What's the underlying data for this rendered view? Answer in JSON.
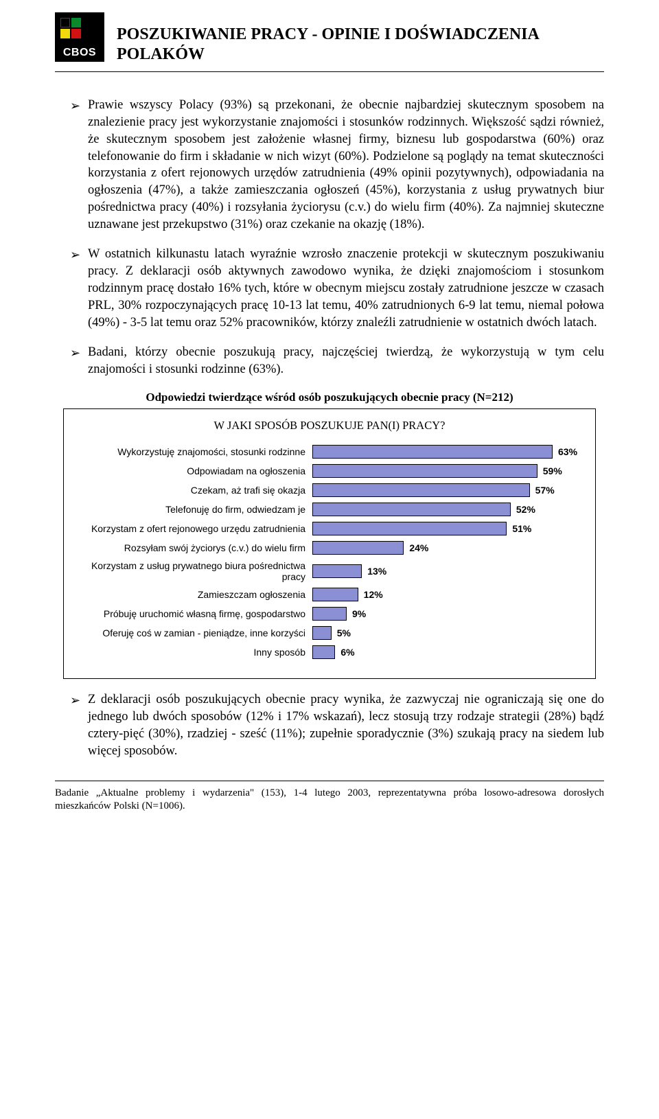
{
  "header": {
    "logo_text": "CBOS",
    "logo_colors": {
      "green": "#0a8a2a",
      "yellow": "#f2d90e",
      "red": "#d11212",
      "black": "#000000"
    },
    "title": "POSZUKIWANIE PRACY - OPINIE I DOŚWIADCZENIA POLAKÓW"
  },
  "bullets": [
    "Prawie wszyscy Polacy (93%) są przekonani, że obecnie najbardziej skutecznym sposobem na znalezienie pracy jest wykorzystanie znajomości i stosunków rodzinnych. Większość sądzi również, że skutecznym sposobem jest założenie własnej firmy, biznesu lub gospodarstwa (60%) oraz telefonowanie do firm i składanie w nich wizyt (60%). Podzielone są poglądy na temat skuteczności korzystania z ofert rejonowych urzędów zatrudnienia (49% opinii pozytywnych), odpowiadania na ogłoszenia (47%), a także zamieszczania ogłoszeń (45%), korzystania z usług prywatnych biur pośrednictwa pracy (40%) i rozsyłania życiorysu (c.v.) do wielu firm (40%). Za najmniej skuteczne uznawane jest przekupstwo (31%) oraz czekanie na okazję (18%).",
    "W ostatnich kilkunastu latach wyraźnie wzrosło znaczenie protekcji w skutecznym poszukiwaniu pracy. Z deklaracji osób aktywnych zawodowo wynika, że dzięki znajomościom i stosunkom rodzinnym pracę dostało 16% tych, które w obecnym miejscu zostały zatrudnione jeszcze w czasach PRL, 30% rozpoczynających pracę 10-13 lat temu, 40% zatrudnionych 6-9 lat temu, niemal połowa (49%) - 3-5 lat temu oraz 52% pracowników, którzy znaleźli zatrudnienie w ostatnich dwóch latach.",
    "Badani, którzy obecnie poszukują pracy, najczęściej twierdzą, że wykorzystują w tym celu znajomości i stosunki rodzinne (63%)."
  ],
  "chart": {
    "type": "bar",
    "title": "Odpowiedzi twierdzące wśród osób poszukujących obecnie pracy (N=212)",
    "subtitle": "W JAKI SPOSÓB POSZUKUJE PAN(I) PRACY?",
    "bar_color": "#8b90d4",
    "bar_border": "#000000",
    "label_fontsize": 14,
    "value_fontsize": 14,
    "xmax": 63,
    "rows": [
      {
        "label": "Wykorzystuję znajomości, stosunki rodzinne",
        "value": 63,
        "display": "63%"
      },
      {
        "label": "Odpowiadam na ogłoszenia",
        "value": 59,
        "display": "59%"
      },
      {
        "label": "Czekam, aż trafi się okazja",
        "value": 57,
        "display": "57%"
      },
      {
        "label": "Telefonuję do firm, odwiedzam je",
        "value": 52,
        "display": "52%"
      },
      {
        "label": "Korzystam  z ofert rejonowego urzędu zatrudnienia",
        "value": 51,
        "display": "51%"
      },
      {
        "label": "Rozsyłam swój życiorys (c.v.) do wielu firm",
        "value": 24,
        "display": "24%"
      },
      {
        "label": "Korzystam z usług prywatnego biura pośrednictwa pracy",
        "value": 13,
        "display": "13%"
      },
      {
        "label": "Zamieszczam ogłoszenia",
        "value": 12,
        "display": "12%"
      },
      {
        "label": "Próbuję uruchomić własną firmę, gospodarstwo",
        "value": 9,
        "display": "9%"
      },
      {
        "label": "Oferuję coś w zamian - pieniądze, inne korzyści",
        "value": 5,
        "display": "5%"
      },
      {
        "label": "Inny sposób",
        "value": 6,
        "display": "6%"
      }
    ]
  },
  "post_chart_bullet": "Z deklaracji osób poszukujących obecnie pracy wynika, że zazwyczaj nie ograniczają się one do jednego lub dwóch sposobów (12% i 17% wskazań), lecz stosują trzy rodzaje strategii (28%) bądź cztery-pięć (30%), rzadziej - sześć (11%); zupełnie sporadycznie (3%) szukają pracy na siedem lub więcej sposobów.",
  "footnote": "Badanie „Aktualne problemy i wydarzenia\" (153), 1-4 lutego 2003, reprezentatywna próba losowo-adresowa dorosłych mieszkańców Polski (N=1006)."
}
